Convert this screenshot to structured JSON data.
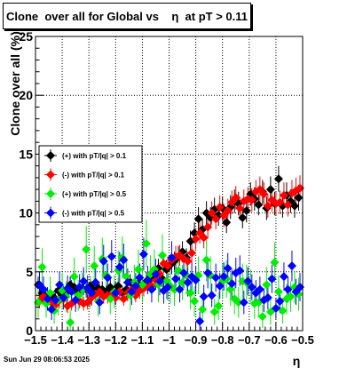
{
  "title": "Clone  over all for Global vs    η  at pT > 0.11",
  "timestamp": "Sun Jun 29 08:06:53 2025",
  "chart_data": {
    "type": "scatter",
    "title": "Clone  over all for Global vs    η  at pT > 0.11",
    "xlabel": "η",
    "ylabel": "Clone  over all (%)",
    "xlim": [
      -1.5,
      -0.5
    ],
    "ylim": [
      0,
      25
    ],
    "x_ticks": [
      "−1.5",
      "−1.4",
      "−1.3",
      "−1.2",
      "−1.1",
      "−1",
      "−0.9",
      "−0.8",
      "−0.7",
      "−0.6",
      "−0.5"
    ],
    "y_ticks": [
      "0",
      "5",
      "10",
      "15",
      "20",
      "25"
    ],
    "grid": true,
    "legend_position": "middle-left",
    "series": [
      {
        "name": "(+) with pT/|q| > 0.1",
        "color": "#000000",
        "x": [
          -1.49,
          -1.475,
          -1.46,
          -1.445,
          -1.43,
          -1.415,
          -1.4,
          -1.385,
          -1.37,
          -1.355,
          -1.34,
          -1.325,
          -1.31,
          -1.295,
          -1.28,
          -1.265,
          -1.25,
          -1.235,
          -1.22,
          -1.205,
          -1.19,
          -1.175,
          -1.16,
          -1.145,
          -1.13,
          -1.115,
          -1.1,
          -1.085,
          -1.07,
          -1.055,
          -1.04,
          -1.025,
          -1.01,
          -0.995,
          -0.98,
          -0.965,
          -0.95,
          -0.935,
          -0.92,
          -0.905,
          -0.89,
          -0.875,
          -0.86,
          -0.845,
          -0.83,
          -0.815,
          -0.8,
          -0.785,
          -0.77,
          -0.755,
          -0.74,
          -0.725,
          -0.71,
          -0.695,
          -0.68,
          -0.665,
          -0.65,
          -0.635,
          -0.62,
          -0.605,
          -0.59,
          -0.575,
          -0.56,
          -0.545,
          -0.53,
          -0.515
        ],
        "values": [
          3.9,
          3.2,
          2.9,
          3.1,
          2.8,
          3.4,
          3.0,
          3.2,
          3.9,
          3.7,
          3.3,
          3.6,
          3.5,
          3.8,
          3.4,
          3.6,
          3.5,
          3.3,
          3.7,
          3.4,
          3.8,
          3.2,
          3.5,
          4.1,
          3.6,
          4.0,
          3.8,
          4.2,
          4.4,
          4.6,
          5.3,
          4.4,
          5.2,
          5.6,
          5.9,
          6.3,
          6.7,
          6.2,
          7.6,
          8.3,
          9.5,
          8.6,
          10.0,
          9.6,
          10.3,
          9.8,
          10.4,
          9.2,
          10.5,
          11.0,
          10.8,
          9.6,
          10.2,
          11.6,
          11.2,
          10.7,
          11.8,
          10.4,
          12.0,
          10.8,
          12.9,
          10.6,
          11.5,
          11.0,
          10.6,
          11.3
        ],
        "errors": [
          0.7,
          0.8,
          0.6,
          0.7,
          0.6,
          0.7,
          0.6,
          0.7,
          0.7,
          0.6,
          0.7,
          0.6,
          0.7,
          0.6,
          0.7,
          0.6,
          0.7,
          0.6,
          0.7,
          0.6,
          0.7,
          0.6,
          0.7,
          0.7,
          0.6,
          0.7,
          0.7,
          0.8,
          0.7,
          0.8,
          0.8,
          0.7,
          0.8,
          0.8,
          0.8,
          0.9,
          0.9,
          0.8,
          0.9,
          0.9,
          1.0,
          0.9,
          1.0,
          0.9,
          1.0,
          0.9,
          1.0,
          0.9,
          1.0,
          1.0,
          1.0,
          0.9,
          1.0,
          1.0,
          1.0,
          0.9,
          1.0,
          1.0,
          1.1,
          1.0,
          1.1,
          1.0,
          1.1,
          1.0,
          1.0,
          1.1
        ]
      },
      {
        "name": "(-) with pT/|q| > 0.1",
        "color": "#ff0000",
        "x": [
          -1.485,
          -1.47,
          -1.455,
          -1.44,
          -1.425,
          -1.41,
          -1.395,
          -1.38,
          -1.365,
          -1.35,
          -1.335,
          -1.32,
          -1.305,
          -1.29,
          -1.275,
          -1.26,
          -1.245,
          -1.23,
          -1.215,
          -1.2,
          -1.185,
          -1.17,
          -1.155,
          -1.14,
          -1.125,
          -1.11,
          -1.095,
          -1.08,
          -1.065,
          -1.05,
          -1.035,
          -1.02,
          -1.005,
          -0.99,
          -0.975,
          -0.96,
          -0.945,
          -0.93,
          -0.915,
          -0.9,
          -0.885,
          -0.87,
          -0.855,
          -0.84,
          -0.825,
          -0.81,
          -0.795,
          -0.78,
          -0.765,
          -0.75,
          -0.735,
          -0.72,
          -0.705,
          -0.69,
          -0.675,
          -0.66,
          -0.645,
          -0.63,
          -0.615,
          -0.6,
          -0.585,
          -0.57,
          -0.555,
          -0.54,
          -0.525,
          -0.51
        ],
        "values": [
          2.5,
          2.9,
          2.7,
          2.4,
          2.2,
          2.6,
          2.7,
          2.1,
          2.3,
          2.6,
          2.5,
          2.3,
          2.4,
          2.8,
          3.1,
          3.3,
          2.9,
          3.0,
          3.1,
          2.8,
          3.3,
          2.7,
          3.2,
          3.5,
          3.0,
          3.4,
          3.6,
          3.9,
          3.8,
          4.3,
          4.8,
          5.7,
          5.5,
          6.0,
          6.3,
          6.4,
          6.1,
          5.9,
          6.6,
          7.8,
          8.3,
          7.9,
          8.8,
          10.0,
          9.5,
          10.5,
          9.8,
          10.2,
          10.9,
          11.3,
          10.4,
          11.0,
          11.2,
          11.1,
          11.8,
          12.0,
          11.6,
          10.6,
          11.1,
          10.8,
          10.9,
          11.5,
          10.7,
          11.7,
          11.9,
          12.1
        ],
        "errors": [
          0.6,
          0.7,
          0.6,
          0.6,
          0.6,
          0.7,
          0.6,
          0.6,
          0.6,
          0.7,
          0.6,
          0.6,
          0.6,
          0.7,
          0.7,
          0.7,
          0.6,
          0.7,
          0.7,
          0.6,
          0.7,
          0.6,
          0.7,
          0.7,
          0.6,
          0.7,
          0.7,
          0.7,
          0.7,
          0.8,
          0.8,
          0.8,
          0.8,
          0.9,
          0.9,
          0.9,
          0.8,
          0.8,
          0.9,
          0.9,
          0.9,
          0.9,
          1.0,
          1.0,
          0.9,
          1.0,
          1.0,
          1.0,
          1.0,
          1.0,
          1.0,
          1.0,
          1.0,
          1.0,
          1.0,
          1.1,
          1.0,
          1.0,
          1.0,
          1.0,
          1.0,
          1.1,
          1.0,
          1.1,
          1.1,
          1.1
        ]
      },
      {
        "name": "(+) with pT/|q| > 0.5",
        "color": "#00ee00",
        "x": [
          -1.49,
          -1.475,
          -1.46,
          -1.445,
          -1.43,
          -1.415,
          -1.4,
          -1.385,
          -1.37,
          -1.355,
          -1.34,
          -1.325,
          -1.31,
          -1.295,
          -1.28,
          -1.265,
          -1.25,
          -1.235,
          -1.22,
          -1.205,
          -1.19,
          -1.175,
          -1.16,
          -1.145,
          -1.13,
          -1.115,
          -1.1,
          -1.085,
          -1.07,
          -1.055,
          -1.04,
          -1.025,
          -1.01,
          -0.995,
          -0.98,
          -0.965,
          -0.95,
          -0.935,
          -0.92,
          -0.905,
          -0.89,
          -0.875,
          -0.86,
          -0.845,
          -0.83,
          -0.815,
          -0.8,
          -0.785,
          -0.77,
          -0.755,
          -0.74,
          -0.725,
          -0.71,
          -0.695,
          -0.68,
          -0.665,
          -0.65,
          -0.635,
          -0.62,
          -0.605,
          -0.59,
          -0.575,
          -0.56,
          -0.545,
          -0.53,
          -0.515
        ],
        "values": [
          2.4,
          5.4,
          2.3,
          3.2,
          1.7,
          2.6,
          3.4,
          2.9,
          0.7,
          4.6,
          3.0,
          3.5,
          6.9,
          3.3,
          5.5,
          2.5,
          6.1,
          4.7,
          2.7,
          3.3,
          5.1,
          6.2,
          4.6,
          3.0,
          4.1,
          5.2,
          3.9,
          7.4,
          4.8,
          5.2,
          3.9,
          6.4,
          4.2,
          3.8,
          3.5,
          5.1,
          4.1,
          4.7,
          3.2,
          2.5,
          4.7,
          1.8,
          6.0,
          4.7,
          1.6,
          2.1,
          4.2,
          4.4,
          3.5,
          2.7,
          2.4,
          4.2,
          4.1,
          3.8,
          2.3,
          2.4,
          1.2,
          3.9,
          1.6,
          5.8,
          3.3,
          1.7,
          2.7,
          2.9,
          3.7,
          3.1
        ],
        "errors": [
          1.3,
          1.6,
          1.2,
          1.4,
          1.1,
          1.3,
          1.5,
          1.3,
          1.0,
          1.6,
          1.3,
          1.4,
          2.0,
          1.4,
          1.7,
          1.3,
          1.8,
          1.6,
          1.3,
          1.4,
          1.7,
          1.8,
          1.6,
          1.3,
          1.5,
          1.7,
          1.5,
          2.0,
          1.6,
          1.7,
          1.5,
          1.8,
          1.5,
          1.5,
          1.4,
          1.7,
          1.5,
          1.6,
          1.4,
          1.3,
          1.6,
          1.2,
          1.8,
          1.6,
          1.1,
          1.2,
          1.5,
          1.6,
          1.4,
          1.3,
          1.3,
          1.5,
          1.5,
          1.4,
          1.3,
          1.3,
          1.0,
          1.5,
          1.1,
          1.7,
          1.4,
          1.1,
          1.3,
          1.3,
          1.4,
          1.4
        ]
      },
      {
        "name": "(-) with pT/|q| > 0.5",
        "color": "#0000ff",
        "x": [
          -1.485,
          -1.47,
          -1.455,
          -1.44,
          -1.425,
          -1.41,
          -1.395,
          -1.38,
          -1.365,
          -1.35,
          -1.335,
          -1.32,
          -1.305,
          -1.29,
          -1.275,
          -1.26,
          -1.245,
          -1.23,
          -1.215,
          -1.2,
          -1.185,
          -1.17,
          -1.155,
          -1.14,
          -1.125,
          -1.11,
          -1.095,
          -1.08,
          -1.065,
          -1.05,
          -1.035,
          -1.02,
          -1.005,
          -0.99,
          -0.975,
          -0.96,
          -0.945,
          -0.93,
          -0.915,
          -0.9,
          -0.885,
          -0.87,
          -0.855,
          -0.84,
          -0.825,
          -0.81,
          -0.795,
          -0.78,
          -0.765,
          -0.75,
          -0.735,
          -0.72,
          -0.705,
          -0.69,
          -0.675,
          -0.66,
          -0.645,
          -0.63,
          -0.615,
          -0.6,
          -0.585,
          -0.57,
          -0.555,
          -0.54,
          -0.525,
          -0.51
        ],
        "values": [
          3.9,
          3.5,
          2.7,
          1.8,
          2.6,
          3.9,
          2.8,
          3.6,
          3.3,
          2.6,
          3.7,
          4.2,
          3.6,
          3.2,
          4.1,
          2.4,
          5.9,
          4.5,
          6.3,
          3.2,
          5.4,
          6.0,
          4.1,
          3.3,
          3.8,
          4.5,
          6.5,
          4.3,
          3.5,
          4.8,
          4.2,
          3.4,
          3.7,
          6.2,
          4.4,
          3.5,
          4.9,
          4.1,
          4.6,
          4.3,
          0.8,
          2.9,
          4.9,
          3.0,
          4.5,
          3.8,
          4.6,
          5.3,
          4.0,
          4.9,
          5.1,
          2.4,
          4.2,
          3.7,
          3.2,
          3.5,
          2.6,
          2.8,
          4.4,
          1.9,
          2.5,
          4.6,
          3.5,
          5.5,
          3.3,
          3.7
        ],
        "errors": [
          1.1,
          1.1,
          1.0,
          0.9,
          1.0,
          1.1,
          1.0,
          1.1,
          1.0,
          1.0,
          1.1,
          1.2,
          1.1,
          1.0,
          1.2,
          1.0,
          1.4,
          1.2,
          1.4,
          1.0,
          1.3,
          1.4,
          1.2,
          1.1,
          1.1,
          1.2,
          1.4,
          1.2,
          1.1,
          1.3,
          1.2,
          1.1,
          1.1,
          1.4,
          1.2,
          1.1,
          1.3,
          1.2,
          1.2,
          1.2,
          0.8,
          1.0,
          1.3,
          1.0,
          1.2,
          1.1,
          1.2,
          1.3,
          1.2,
          1.3,
          1.3,
          1.0,
          1.2,
          1.1,
          1.1,
          1.1,
          1.0,
          1.0,
          1.2,
          0.9,
          1.0,
          1.2,
          1.1,
          1.3,
          1.1,
          1.2
        ]
      }
    ]
  }
}
